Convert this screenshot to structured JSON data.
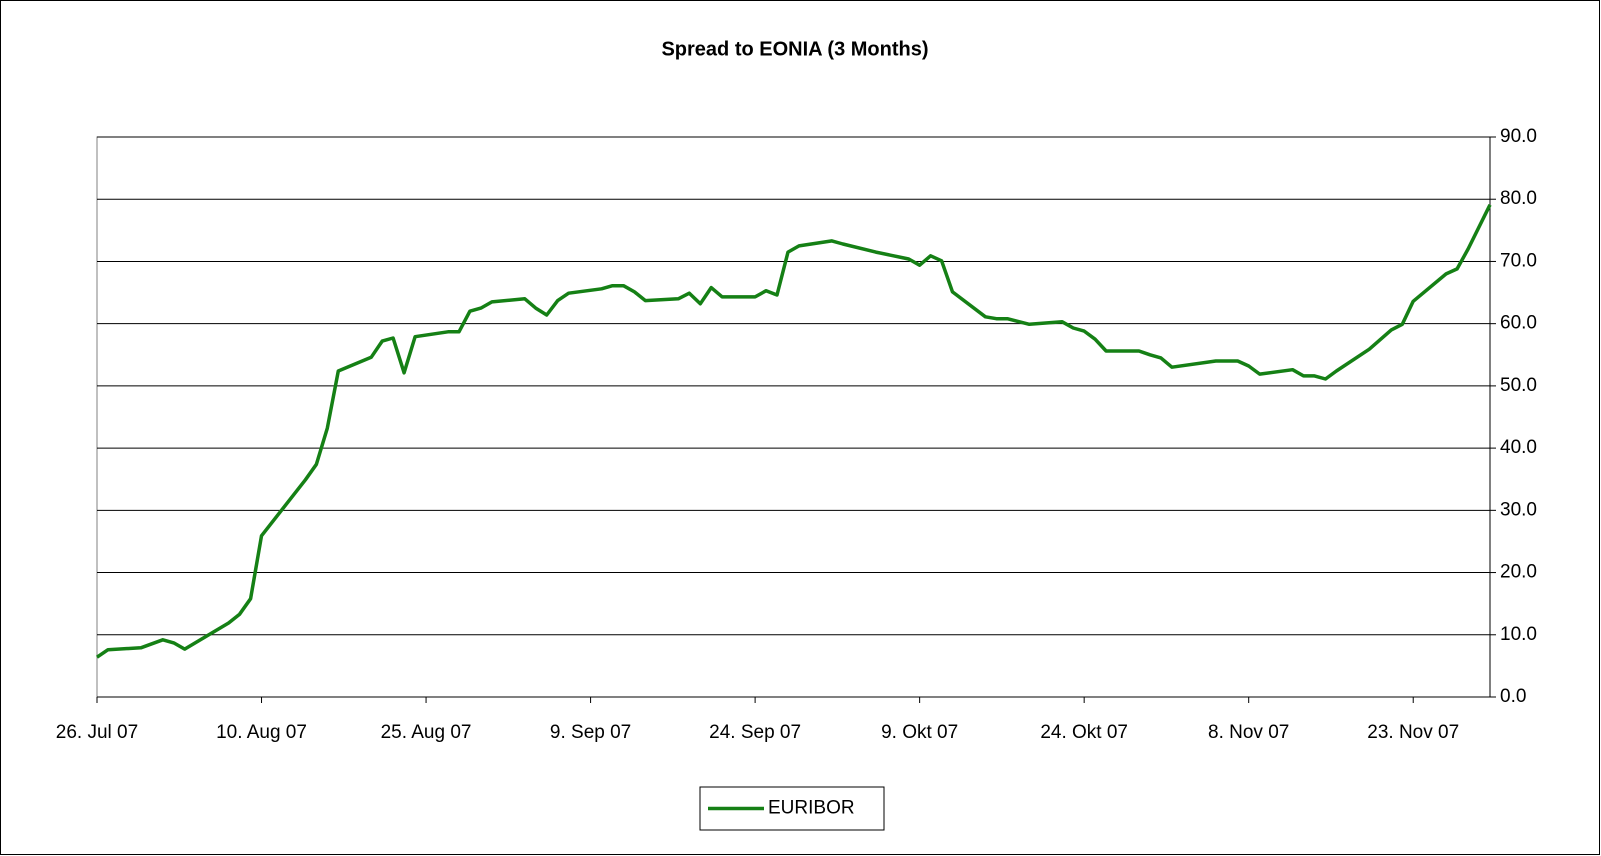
{
  "chart_data": {
    "type": "line",
    "title": "Spread to EONIA (3 Months)",
    "x": [
      "2007-07-26",
      "2007-07-27",
      "2007-07-30",
      "2007-08-01",
      "2007-08-02",
      "2007-08-03",
      "2007-08-07",
      "2007-08-08",
      "2007-08-09",
      "2007-08-10",
      "2007-08-14",
      "2007-08-15",
      "2007-08-16",
      "2007-08-17",
      "2007-08-20",
      "2007-08-21",
      "2007-08-22",
      "2007-08-23",
      "2007-08-24",
      "2007-08-27",
      "2007-08-28",
      "2007-08-29",
      "2007-08-30",
      "2007-08-31",
      "2007-09-03",
      "2007-09-04",
      "2007-09-05",
      "2007-09-06",
      "2007-09-07",
      "2007-09-10",
      "2007-09-11",
      "2007-09-12",
      "2007-09-13",
      "2007-09-14",
      "2007-09-17",
      "2007-09-18",
      "2007-09-19",
      "2007-09-20",
      "2007-09-21",
      "2007-09-24",
      "2007-09-25",
      "2007-09-26",
      "2007-09-27",
      "2007-09-28",
      "2007-10-01",
      "2007-10-02",
      "2007-10-05",
      "2007-10-08",
      "2007-10-09",
      "2007-10-10",
      "2007-10-11",
      "2007-10-12",
      "2007-10-15",
      "2007-10-16",
      "2007-10-17",
      "2007-10-19",
      "2007-10-22",
      "2007-10-23",
      "2007-10-24",
      "2007-10-25",
      "2007-10-26",
      "2007-10-29",
      "2007-10-30",
      "2007-10-31",
      "2007-11-01",
      "2007-11-05",
      "2007-11-07",
      "2007-11-08",
      "2007-11-09",
      "2007-11-12",
      "2007-11-13",
      "2007-11-14",
      "2007-11-15",
      "2007-11-16",
      "2007-11-19",
      "2007-11-21",
      "2007-11-22",
      "2007-11-23",
      "2007-11-26",
      "2007-11-27",
      "2007-11-28",
      "2007-11-30"
    ],
    "series": [
      {
        "name": "EURIBOR",
        "color": "#158015",
        "values": [
          6.4,
          7.6,
          7.9,
          9.2,
          8.7,
          7.7,
          11.9,
          13.3,
          15.8,
          25.9,
          34.9,
          37.4,
          43.2,
          52.4,
          54.6,
          57.2,
          57.7,
          52.1,
          57.9,
          58.7,
          58.7,
          62.0,
          62.5,
          63.5,
          64.0,
          62.5,
          61.4,
          63.7,
          64.9,
          65.6,
          66.1,
          66.1,
          65.1,
          63.7,
          64.0,
          64.9,
          63.2,
          65.8,
          64.3,
          64.3,
          65.3,
          64.6,
          71.5,
          72.5,
          73.3,
          72.8,
          71.5,
          70.4,
          69.4,
          70.9,
          70.1,
          65.1,
          61.1,
          60.8,
          60.8,
          59.9,
          60.3,
          59.3,
          58.8,
          57.5,
          55.6,
          55.6,
          55.0,
          54.5,
          53.0,
          54.0,
          54.0,
          53.2,
          51.9,
          52.6,
          51.6,
          51.6,
          51.1,
          52.4,
          55.9,
          59.0,
          59.9,
          63.6,
          68.0,
          68.8,
          72.0,
          79.1
        ]
      }
    ],
    "xlim": [
      "2007-07-26",
      "2007-11-30"
    ],
    "xticks": [
      {
        "value": "2007-07-26",
        "label": "26. Jul 07"
      },
      {
        "value": "2007-08-10",
        "label": "10. Aug 07"
      },
      {
        "value": "2007-08-25",
        "label": "25. Aug 07"
      },
      {
        "value": "2007-09-09",
        "label": "9. Sep 07"
      },
      {
        "value": "2007-09-24",
        "label": "24. Sep 07"
      },
      {
        "value": "2007-10-09",
        "label": "9. Okt 07"
      },
      {
        "value": "2007-10-24",
        "label": "24. Okt 07"
      },
      {
        "value": "2007-11-08",
        "label": "8. Nov 07"
      },
      {
        "value": "2007-11-23",
        "label": "23. Nov 07"
      }
    ],
    "ylim": [
      0,
      90
    ],
    "yticks": [
      {
        "value": 0,
        "label": "0.0"
      },
      {
        "value": 10,
        "label": "10.0"
      },
      {
        "value": 20,
        "label": "20.0"
      },
      {
        "value": 30,
        "label": "30.0"
      },
      {
        "value": 40,
        "label": "40.0"
      },
      {
        "value": 50,
        "label": "50.0"
      },
      {
        "value": 60,
        "label": "60.0"
      },
      {
        "value": 70,
        "label": "70.0"
      },
      {
        "value": 80,
        "label": "80.0"
      },
      {
        "value": 90,
        "label": "90.0"
      }
    ],
    "y_axis_side": "right",
    "grid": true,
    "legend": "bottom"
  }
}
